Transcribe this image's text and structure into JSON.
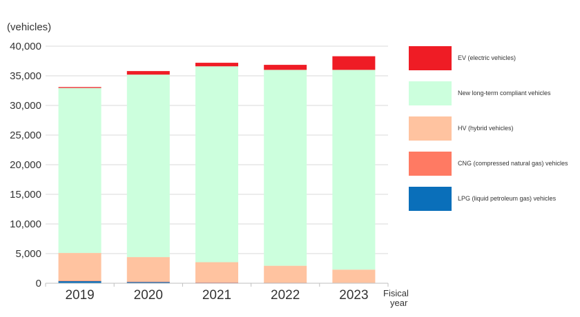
{
  "chart_data": {
    "type": "bar",
    "stacked": true,
    "title": "",
    "ylabel": "(vehicles)",
    "xlabel": "Fisical year",
    "xlabel_lines": [
      "Fisical",
      "year"
    ],
    "categories": [
      "2019",
      "2020",
      "2021",
      "2022",
      "2023"
    ],
    "ylim": [
      0,
      40000
    ],
    "yticks": [
      0,
      5000,
      10000,
      15000,
      20000,
      25000,
      30000,
      35000,
      40000
    ],
    "ytick_labels": [
      "0",
      "5,000",
      "10,000",
      "15,000",
      "20,000",
      "25,000",
      "30,000",
      "35,000",
      "40,000"
    ],
    "grid": true,
    "legend_position": "right",
    "series": [
      {
        "name": "LPG (liquid petroleum gas) vehicles",
        "color": "#0a6fba",
        "values": [
          400,
          250,
          130,
          80,
          60
        ]
      },
      {
        "name": "CNG (compressed natural gas) vehicles",
        "color": "#ff7a63",
        "values": [
          10,
          10,
          10,
          10,
          10
        ]
      },
      {
        "name": "HV (hybrid vehicles)",
        "color": "#ffc3a0",
        "values": [
          4700,
          4150,
          3410,
          2860,
          2230
        ]
      },
      {
        "name": "New long-term compliant vehicles",
        "color": "#ccffdd",
        "values": [
          27840,
          30790,
          33050,
          33050,
          33700
        ]
      },
      {
        "name": "EV (electric vehicles)",
        "color": "#ef1c25",
        "values": [
          150,
          600,
          600,
          850,
          2300
        ]
      }
    ]
  }
}
